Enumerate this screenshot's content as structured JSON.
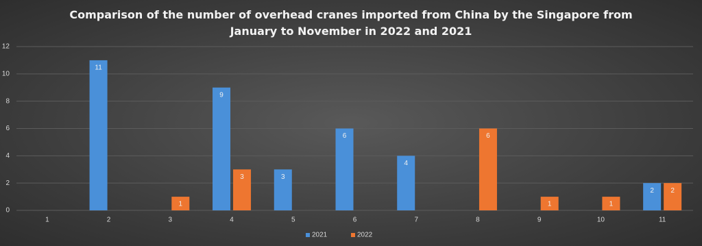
{
  "chart_data": {
    "type": "bar",
    "title": "Comparison of the number of overhead cranes imported from China by the Singapore from January to November in 2022 and 2021",
    "categories": [
      "1",
      "2",
      "3",
      "4",
      "5",
      "6",
      "7",
      "8",
      "9",
      "10",
      "11"
    ],
    "series": [
      {
        "name": "2021",
        "color": "#4a90d9",
        "values": [
          null,
          11,
          null,
          9,
          3,
          6,
          4,
          null,
          null,
          null,
          2
        ]
      },
      {
        "name": "2022",
        "color": "#ee7630",
        "values": [
          null,
          null,
          1,
          3,
          null,
          null,
          null,
          6,
          1,
          1,
          2
        ]
      }
    ],
    "ylim": [
      0,
      12
    ],
    "yticks": [
      0,
      2,
      4,
      6,
      8,
      10,
      12
    ],
    "grid": true,
    "legend": "bottom"
  }
}
